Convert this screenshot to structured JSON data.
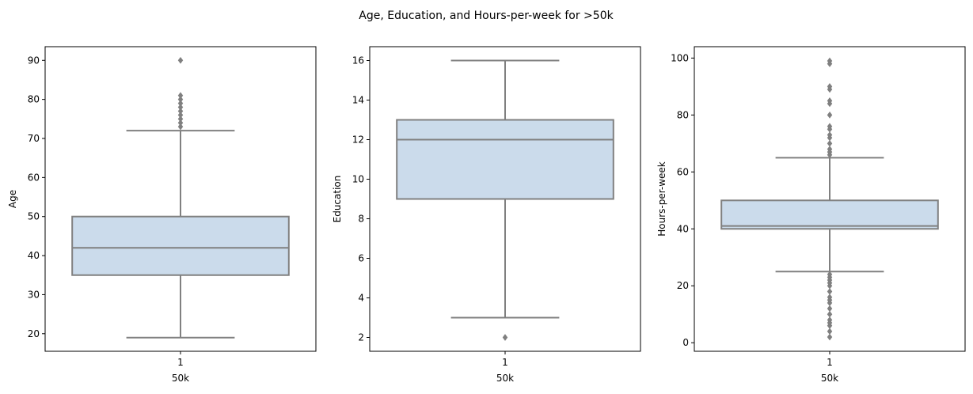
{
  "figure": {
    "suptitle": "Age, Education, and Hours-per-week for >50k"
  },
  "style": {
    "box_fill": "#cbdbeb",
    "line_color": "#808080",
    "flier_color": "#808080",
    "axes_color": "#000000"
  },
  "chart_data": [
    {
      "type": "box",
      "xlabel": "50k",
      "ylabel": "Age",
      "categories": [
        "1"
      ],
      "ylim": [
        15.5,
        93.5
      ],
      "yticks": [
        20,
        30,
        40,
        50,
        60,
        70,
        80,
        90
      ],
      "box": {
        "whisker_low": 19,
        "q1": 35,
        "median": 42,
        "q3": 50,
        "whisker_high": 72
      },
      "outliers": [
        73,
        74,
        75,
        76,
        77,
        78,
        79,
        80,
        81,
        90
      ]
    },
    {
      "type": "box",
      "xlabel": "50k",
      "ylabel": "Education",
      "categories": [
        "1"
      ],
      "ylim": [
        1.3,
        16.7
      ],
      "yticks": [
        2,
        4,
        6,
        8,
        10,
        12,
        14,
        16
      ],
      "box": {
        "whisker_low": 3,
        "q1": 9,
        "median": 12,
        "q3": 13,
        "whisker_high": 16
      },
      "outliers": [
        2
      ]
    },
    {
      "type": "box",
      "xlabel": "50k",
      "ylabel": "Hours-per-week",
      "categories": [
        "1"
      ],
      "ylim": [
        -3,
        104
      ],
      "yticks": [
        0,
        20,
        40,
        60,
        80,
        100
      ],
      "box": {
        "whisker_low": 25,
        "q1": 40,
        "median": 41,
        "q3": 50,
        "whisker_high": 65
      },
      "outliers": [
        2,
        4,
        6,
        7,
        8,
        10,
        12,
        14,
        15,
        16,
        18,
        20,
        21,
        22,
        23,
        24,
        66,
        67,
        68,
        70,
        72,
        73,
        75,
        76,
        80,
        84,
        85,
        89,
        90,
        98,
        99
      ]
    }
  ]
}
